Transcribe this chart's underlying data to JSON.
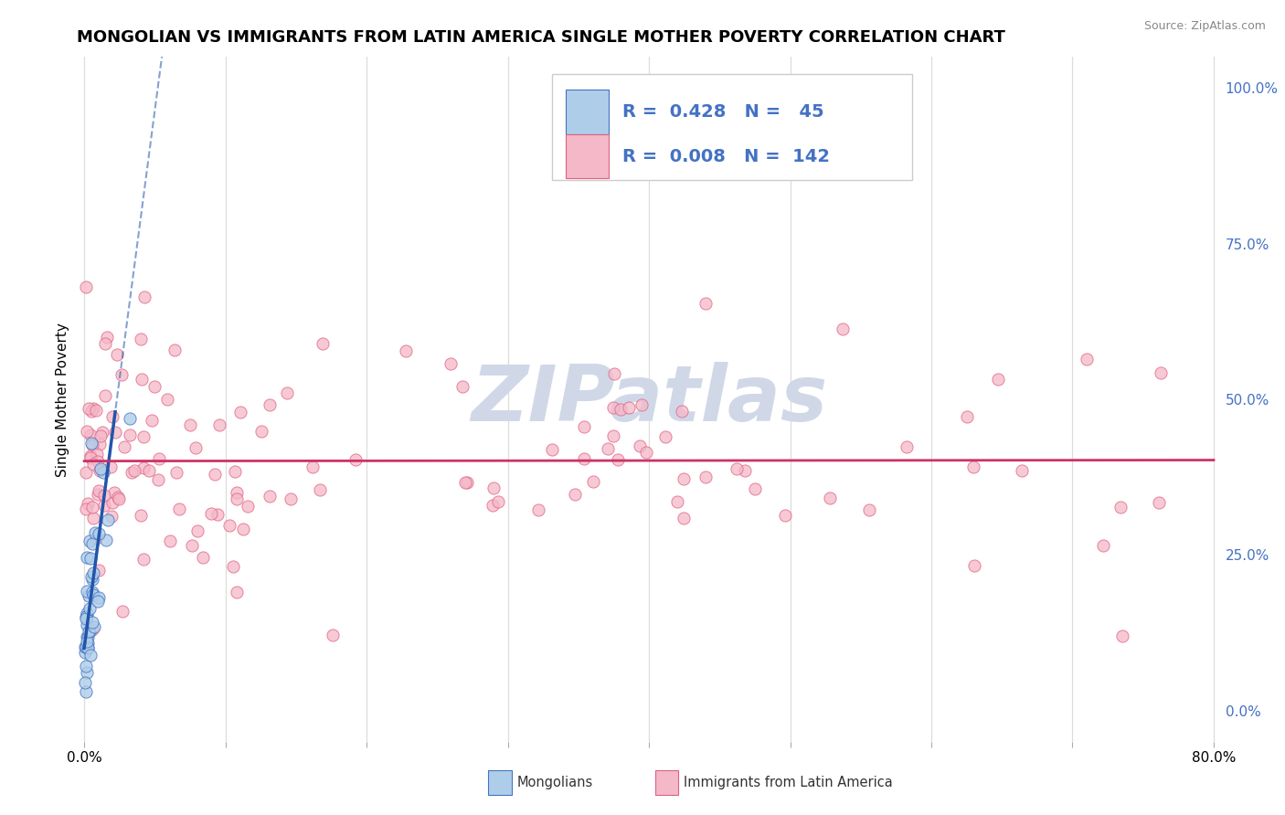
{
  "title": "MONGOLIAN VS IMMIGRANTS FROM LATIN AMERICA SINGLE MOTHER POVERTY CORRELATION CHART",
  "source": "Source: ZipAtlas.com",
  "ylabel": "Single Mother Poverty",
  "legend_blue_r": "0.428",
  "legend_blue_n": "45",
  "legend_pink_r": "0.008",
  "legend_pink_n": "142",
  "legend_label_blue": "Mongolians",
  "legend_label_pink": "Immigrants from Latin America",
  "xlim": [
    -0.005,
    0.805
  ],
  "ylim": [
    -0.05,
    1.05
  ],
  "xticks": [
    0.0,
    0.1,
    0.2,
    0.3,
    0.4,
    0.5,
    0.6,
    0.7,
    0.8
  ],
  "xtick_labels": [
    "0.0%",
    "",
    "",
    "",
    "",
    "",
    "",
    "",
    "80.0%"
  ],
  "ytick_right": [
    0.0,
    0.25,
    0.5,
    0.75,
    1.0
  ],
  "ytick_right_labels": [
    "0.0%",
    "25.0%",
    "50.0%",
    "75.0%",
    "100.0%"
  ],
  "blue_fill": "#aecde8",
  "blue_edge": "#4472c4",
  "pink_fill": "#f4b8c8",
  "pink_edge": "#e06080",
  "blue_line_color": "#2255aa",
  "pink_line_color": "#cc3366",
  "grid_color": "#dddddd",
  "watermark_color": "#d0d8e8",
  "right_tick_color": "#4472c4",
  "title_fontsize": 13,
  "axis_fontsize": 11,
  "legend_fontsize": 14
}
